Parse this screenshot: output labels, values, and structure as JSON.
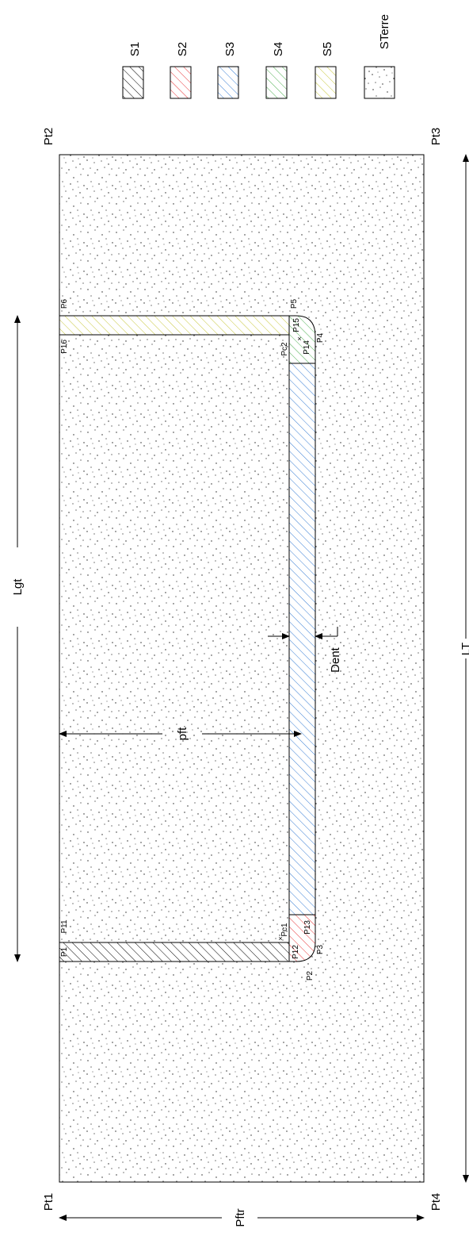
{
  "legend": [
    {
      "label": "S1",
      "color": "#000000"
    },
    {
      "label": "S2",
      "color": "#e8373a"
    },
    {
      "label": "S3",
      "color": "#3a7fd5"
    },
    {
      "label": "S4",
      "color": "#4caf50"
    },
    {
      "label": "S5",
      "color": "#c8c83c"
    },
    {
      "label": "STerre",
      "color": "#555555"
    }
  ],
  "corners": {
    "pt1": "Pt1",
    "pt2": "Pt2",
    "pt3": "Pt3",
    "pt4": "Pt4"
  },
  "points": {
    "p1": "P1",
    "p2": "P2",
    "p3": "P3",
    "p4": "P4",
    "p5": "P5",
    "p6": "P6",
    "p11": "P11",
    "p12": "P12",
    "p13": "P13",
    "p14": "P14",
    "p15": "P15",
    "p16": "P16",
    "pc1": "Pc1",
    "pc2": "Pc2"
  },
  "dimensions": {
    "lgt": "Lgt",
    "pft": "pft",
    "dent": "Dent",
    "lt": "LT",
    "pftr": "Pftr"
  }
}
